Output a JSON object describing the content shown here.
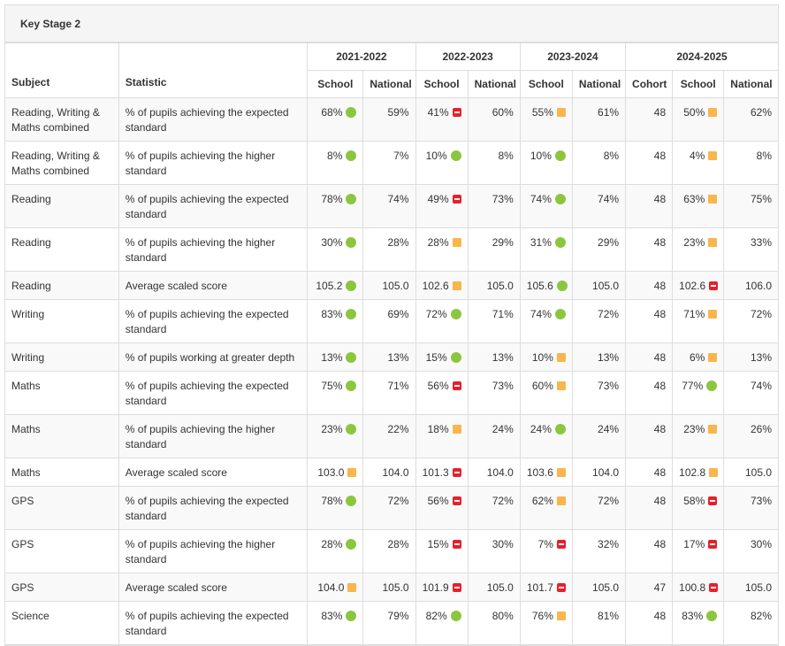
{
  "title": "Key Stage 2",
  "headers": {
    "subject": "Subject",
    "statistic": "Statistic",
    "years": [
      "2021-2022",
      "2022-2023",
      "2023-2024",
      "2024-2025"
    ],
    "school": "School",
    "national": "National",
    "cohort": "Cohort"
  },
  "indicator_colors": {
    "green": "#8cc63f",
    "amber": "#f8b64c",
    "red": "#e8202a"
  },
  "rows": [
    {
      "subject": "Reading, Writing & Maths combined",
      "statistic": "% of pupils achieving the expected standard",
      "y1_school": "68%",
      "y1_ind": "green",
      "y1_nat": "59%",
      "y2_school": "41%",
      "y2_ind": "red",
      "y2_nat": "60%",
      "y3_school": "55%",
      "y3_ind": "amber",
      "y3_nat": "61%",
      "y4_cohort": "48",
      "y4_school": "50%",
      "y4_ind": "amber",
      "y4_nat": "62%"
    },
    {
      "subject": "Reading, Writing & Maths combined",
      "statistic": "% of pupils achieving the higher standard",
      "y1_school": "8%",
      "y1_ind": "green",
      "y1_nat": "7%",
      "y2_school": "10%",
      "y2_ind": "green",
      "y2_nat": "8%",
      "y3_school": "10%",
      "y3_ind": "green",
      "y3_nat": "8%",
      "y4_cohort": "48",
      "y4_school": "4%",
      "y4_ind": "amber",
      "y4_nat": "8%"
    },
    {
      "subject": "Reading",
      "statistic": "% of pupils achieving the expected standard",
      "y1_school": "78%",
      "y1_ind": "green",
      "y1_nat": "74%",
      "y2_school": "49%",
      "y2_ind": "red",
      "y2_nat": "73%",
      "y3_school": "74%",
      "y3_ind": "green",
      "y3_nat": "74%",
      "y4_cohort": "48",
      "y4_school": "63%",
      "y4_ind": "amber",
      "y4_nat": "75%"
    },
    {
      "subject": "Reading",
      "statistic": "% of pupils achieving the higher standard",
      "y1_school": "30%",
      "y1_ind": "green",
      "y1_nat": "28%",
      "y2_school": "28%",
      "y2_ind": "amber",
      "y2_nat": "29%",
      "y3_school": "31%",
      "y3_ind": "green",
      "y3_nat": "29%",
      "y4_cohort": "48",
      "y4_school": "23%",
      "y4_ind": "amber",
      "y4_nat": "33%"
    },
    {
      "subject": "Reading",
      "statistic": "Average scaled score",
      "y1_school": "105.2",
      "y1_ind": "green",
      "y1_nat": "105.0",
      "y2_school": "102.6",
      "y2_ind": "amber",
      "y2_nat": "105.0",
      "y3_school": "105.6",
      "y3_ind": "green",
      "y3_nat": "105.0",
      "y4_cohort": "48",
      "y4_school": "102.6",
      "y4_ind": "red",
      "y4_nat": "106.0"
    },
    {
      "subject": "Writing",
      "statistic": "% of pupils achieving the expected standard",
      "y1_school": "83%",
      "y1_ind": "green",
      "y1_nat": "69%",
      "y2_school": "72%",
      "y2_ind": "green",
      "y2_nat": "71%",
      "y3_school": "74%",
      "y3_ind": "green",
      "y3_nat": "72%",
      "y4_cohort": "48",
      "y4_school": "71%",
      "y4_ind": "amber",
      "y4_nat": "72%"
    },
    {
      "subject": "Writing",
      "statistic": "% of pupils working at greater depth",
      "y1_school": "13%",
      "y1_ind": "green",
      "y1_nat": "13%",
      "y2_school": "15%",
      "y2_ind": "green",
      "y2_nat": "13%",
      "y3_school": "10%",
      "y3_ind": "amber",
      "y3_nat": "13%",
      "y4_cohort": "48",
      "y4_school": "6%",
      "y4_ind": "amber",
      "y4_nat": "13%"
    },
    {
      "subject": "Maths",
      "statistic": "% of pupils achieving the expected standard",
      "y1_school": "75%",
      "y1_ind": "green",
      "y1_nat": "71%",
      "y2_school": "56%",
      "y2_ind": "red",
      "y2_nat": "73%",
      "y3_school": "60%",
      "y3_ind": "amber",
      "y3_nat": "73%",
      "y4_cohort": "48",
      "y4_school": "77%",
      "y4_ind": "green",
      "y4_nat": "74%"
    },
    {
      "subject": "Maths",
      "statistic": "% of pupils achieving the higher standard",
      "y1_school": "23%",
      "y1_ind": "green",
      "y1_nat": "22%",
      "y2_school": "18%",
      "y2_ind": "amber",
      "y2_nat": "24%",
      "y3_school": "24%",
      "y3_ind": "green",
      "y3_nat": "24%",
      "y4_cohort": "48",
      "y4_school": "23%",
      "y4_ind": "amber",
      "y4_nat": "26%"
    },
    {
      "subject": "Maths",
      "statistic": "Average scaled score",
      "y1_school": "103.0",
      "y1_ind": "amber",
      "y1_nat": "104.0",
      "y2_school": "101.3",
      "y2_ind": "red",
      "y2_nat": "104.0",
      "y3_school": "103.6",
      "y3_ind": "amber",
      "y3_nat": "104.0",
      "y4_cohort": "48",
      "y4_school": "102.8",
      "y4_ind": "amber",
      "y4_nat": "105.0"
    },
    {
      "subject": "GPS",
      "statistic": "% of pupils achieving the expected standard",
      "y1_school": "78%",
      "y1_ind": "green",
      "y1_nat": "72%",
      "y2_school": "56%",
      "y2_ind": "red",
      "y2_nat": "72%",
      "y3_school": "62%",
      "y3_ind": "amber",
      "y3_nat": "72%",
      "y4_cohort": "48",
      "y4_school": "58%",
      "y4_ind": "red",
      "y4_nat": "73%"
    },
    {
      "subject": "GPS",
      "statistic": "% of pupils achieving the higher standard",
      "y1_school": "28%",
      "y1_ind": "green",
      "y1_nat": "28%",
      "y2_school": "15%",
      "y2_ind": "red",
      "y2_nat": "30%",
      "y3_school": "7%",
      "y3_ind": "red",
      "y3_nat": "32%",
      "y4_cohort": "48",
      "y4_school": "17%",
      "y4_ind": "red",
      "y4_nat": "30%"
    },
    {
      "subject": "GPS",
      "statistic": "Average scaled score",
      "y1_school": "104.0",
      "y1_ind": "amber",
      "y1_nat": "105.0",
      "y2_school": "101.9",
      "y2_ind": "red",
      "y2_nat": "105.0",
      "y3_school": "101.7",
      "y3_ind": "red",
      "y3_nat": "105.0",
      "y4_cohort": "47",
      "y4_school": "100.8",
      "y4_ind": "red",
      "y4_nat": "105.0"
    },
    {
      "subject": "Science",
      "statistic": "% of pupils achieving the expected standard",
      "y1_school": "83%",
      "y1_ind": "green",
      "y1_nat": "79%",
      "y2_school": "82%",
      "y2_ind": "green",
      "y2_nat": "80%",
      "y3_school": "76%",
      "y3_ind": "amber",
      "y3_nat": "81%",
      "y4_cohort": "48",
      "y4_school": "83%",
      "y4_ind": "green",
      "y4_nat": "82%"
    }
  ]
}
